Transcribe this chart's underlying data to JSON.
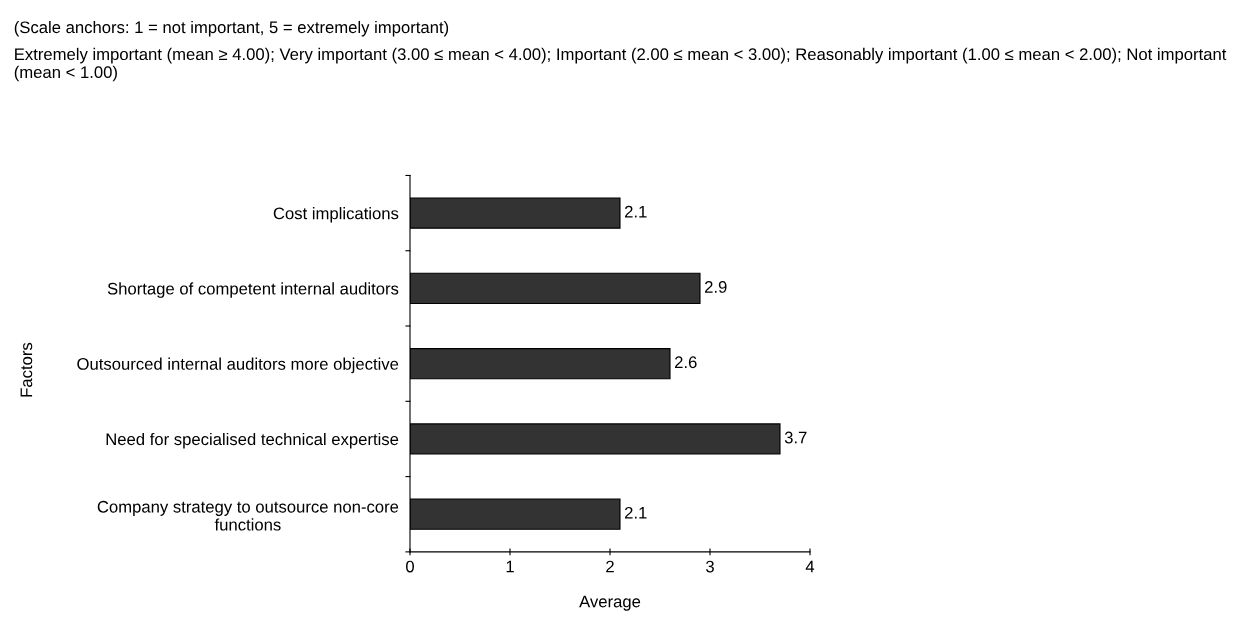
{
  "chart_data": {
    "type": "bar",
    "orientation": "horizontal",
    "title": "(Scale anchors: 1 = not important, 5 = extremely important)",
    "subtitle": "Extremely important (mean ≥ 4.00); Very important (3.00 ≤ mean < 4.00); Important (2.00 ≤ mean < 3.00); Reasonably important (1.00 ≤ mean < 2.00); Not important (mean < 1.00)",
    "categories": [
      "Cost implications",
      "Shortage of competent internal auditors",
      "Outsourced internal auditors more objective",
      "Need for specialised technical expertise",
      "Company strategy to outsource non-core\nfunctions"
    ],
    "values": [
      2.1,
      2.9,
      2.6,
      3.7,
      2.1
    ],
    "color": "#333333",
    "xlim": [
      0,
      4
    ],
    "xticks": [
      0,
      1,
      2,
      3,
      4
    ],
    "xlabel": "Average",
    "ylabel": "Factors",
    "data_labels": true,
    "grid": false,
    "legend": false
  }
}
